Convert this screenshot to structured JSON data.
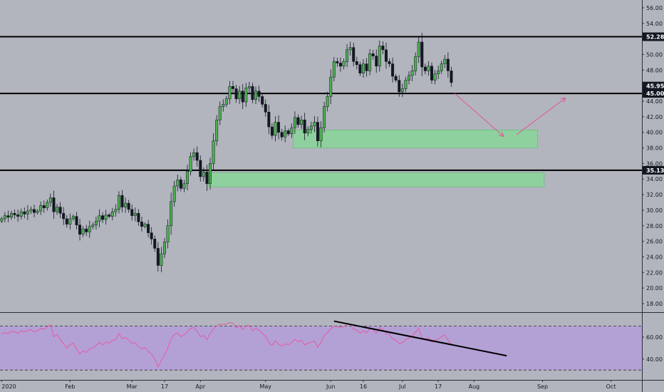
{
  "chart_data": [
    {
      "type": "candlestick",
      "title": "",
      "ylim": [
        16.9,
        57.0
      ],
      "y_ticks": [
        18.0,
        20.0,
        22.0,
        24.0,
        26.0,
        28.0,
        30.0,
        32.0,
        34.0,
        36.0,
        38.0,
        40.0,
        42.0,
        44.0,
        46.0,
        48.0,
        50.0,
        52.0,
        54.0,
        56.0
      ],
      "x_ticks": [
        {
          "label": "2020",
          "index": 0
        },
        {
          "label": "Feb",
          "index": 21
        },
        {
          "label": "Mar",
          "index": 40
        },
        {
          "label": "17",
          "index": 50
        },
        {
          "label": "Apr",
          "index": 61
        },
        {
          "label": "May",
          "index": 81
        },
        {
          "label": "Jun",
          "index": 101
        },
        {
          "label": "16",
          "index": 111
        },
        {
          "label": "Jul",
          "index": 123
        },
        {
          "label": "17",
          "index": 134
        },
        {
          "label": "Aug",
          "index": 145
        },
        {
          "label": "Sep",
          "index": 166
        },
        {
          "label": "Oct",
          "index": 187
        }
      ],
      "x_count": 197,
      "close": [
        28.9,
        29.3,
        29.1,
        29.6,
        29.4,
        29.2,
        29.8,
        29.5,
        29.9,
        30.1,
        29.7,
        29.9,
        30.6,
        30.3,
        31.0,
        31.6,
        29.8,
        30.4,
        29.6,
        28.9,
        28.2,
        28.9,
        29.2,
        28.1,
        26.9,
        27.6,
        27.2,
        27.9,
        28.1,
        28.6,
        29.3,
        28.8,
        29.4,
        29.2,
        29.8,
        30.1,
        31.9,
        30.4,
        30.9,
        30.1,
        29.3,
        29.6,
        28.5,
        27.9,
        28.2,
        27.1,
        26.3,
        25.1,
        22.9,
        24.4,
        25.9,
        28.0,
        31.1,
        33.1,
        33.9,
        32.8,
        33.4,
        35.0,
        36.9,
        37.4,
        36.4,
        34.3,
        34.9,
        33.4,
        36.0,
        38.9,
        41.6,
        43.3,
        43.6,
        44.3,
        45.9,
        45.6,
        44.3,
        45.3,
        43.9,
        45.7,
        45.9,
        44.2,
        45.3,
        44.6,
        43.6,
        42.6,
        40.7,
        39.6,
        41.3,
        40.0,
        39.4,
        40.2,
        39.8,
        40.6,
        41.9,
        41.0,
        41.6,
        39.9,
        40.4,
        40.8,
        41.3,
        38.9,
        40.6,
        43.3,
        44.6,
        47.1,
        49.1,
        48.9,
        48.5,
        49.1,
        50.6,
        50.9,
        49.1,
        48.7,
        47.6,
        48.8,
        47.9,
        50.1,
        49.8,
        48.5,
        51.1,
        50.6,
        49.1,
        48.8,
        47.2,
        46.7,
        45.2,
        45.6,
        46.7,
        47.3,
        47.9,
        49.7,
        51.6,
        48.4,
        47.9,
        48.5,
        46.7,
        47.5,
        47.9,
        48.8,
        49.4,
        47.9,
        46.4
      ],
      "levels": [
        52.28,
        45.0,
        35.13
      ],
      "price_labels": [
        "52.28",
        "45.95",
        "45.00",
        "35.13"
      ],
      "zones": [
        {
          "from_index": 90,
          "to_index": 164,
          "low": 38.0,
          "high": 40.3
        },
        {
          "from_index": 64,
          "to_index": 166,
          "low": 33.0,
          "high": 34.8
        }
      ],
      "projection": [
        {
          "from": {
            "index": 139,
            "value": 45.0
          },
          "to": {
            "index": 154,
            "value": 39.5
          }
        },
        {
          "from": {
            "index": 158,
            "value": 39.7
          },
          "to": {
            "index": 173,
            "value": 44.4
          }
        }
      ]
    },
    {
      "type": "line",
      "title": "",
      "ylim": [
        23.0,
        82.0
      ],
      "y_ticks": [
        40.0,
        60.0
      ],
      "bands": [
        30,
        70
      ],
      "series": [
        {
          "values": [
            62.5,
            64.2,
            63.1,
            65.4,
            64.8,
            63.2,
            65.9,
            64.7,
            66.1,
            66.8,
            64.9,
            65.6,
            68.1,
            66.9,
            69.4,
            71.2,
            60.2,
            62.4,
            57.9,
            53.8,
            50.1,
            53.2,
            54.6,
            49.5,
            44.3,
            47.8,
            45.9,
            49.2,
            50.1,
            52.3,
            55.2,
            52.9,
            55.4,
            54.6,
            56.9,
            57.8,
            63.1,
            58.4,
            59.9,
            57.1,
            54.3,
            55.1,
            51.2,
            49.3,
            50.4,
            46.9,
            44.3,
            40.1,
            32.9,
            38.6,
            43.9,
            50.2,
            58.3,
            62.5,
            63.6,
            60.5,
            61.9,
            64.9,
            67.9,
            68.6,
            65.6,
            60.2,
            61.6,
            57.6,
            63.2,
            67.4,
            70.3,
            71.6,
            71.5,
            72.0,
            73.2,
            72.6,
            68.4,
            70.6,
            66.6,
            70.4,
            70.6,
            65.8,
            68.1,
            66.2,
            63.3,
            60.5,
            55.1,
            52.2,
            56.6,
            53.4,
            51.9,
            53.9,
            52.9,
            54.9,
            58.0,
            55.6,
            57.2,
            52.9,
            54.2,
            55.2,
            56.5,
            50.8,
            55.2,
            61.5,
            64.0,
            67.5,
            69.9,
            69.4,
            68.8,
            69.5,
            71.3,
            71.6,
            67.2,
            66.3,
            63.6,
            65.9,
            63.8,
            67.8,
            66.9,
            63.6,
            68.6,
            67.1,
            63.1,
            62.3,
            58.4,
            57.3,
            53.9,
            55.0,
            57.7,
            59.1,
            60.6,
            64.4,
            67.9,
            59.2,
            58.0,
            59.6,
            55.2,
            57.2,
            58.1,
            60.5,
            61.9,
            57.1,
            52.6
          ]
        }
      ],
      "trendline": {
        "from": {
          "index": 102,
          "value": 74.5
        },
        "to": {
          "index": 155,
          "value": 43.0
        }
      }
    }
  ],
  "colors": {
    "background": "#b2b5be",
    "candle_up": "#4caf50",
    "candle_down": "#131722",
    "level_line": "#000000",
    "zone_fill": "#8fd19e",
    "zone_stroke": "#6cbf7c",
    "rsi_line": "#e85aa0",
    "rsi_band": "#b39ddb",
    "projection_arrow": "#e0559b"
  }
}
